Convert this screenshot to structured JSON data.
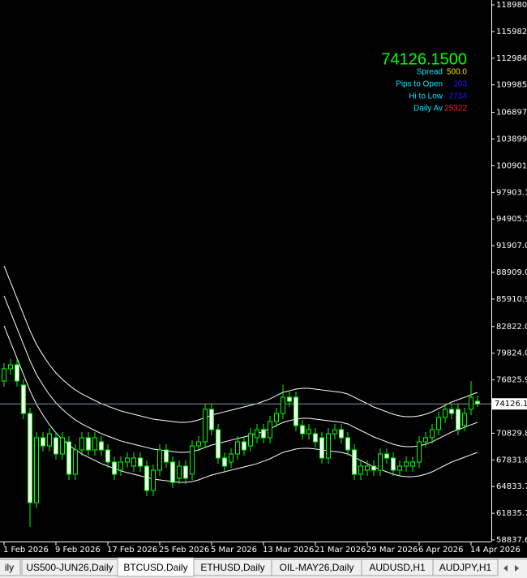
{
  "chart_data": {
    "type": "candlestick",
    "categories": [
      "1 Feb 2026",
      null,
      null,
      null,
      null,
      null,
      null,
      null,
      "9 Feb 2026",
      null,
      null,
      null,
      null,
      null,
      null,
      null,
      "17 Feb 2026",
      null,
      null,
      null,
      null,
      null,
      null,
      null,
      "25 Feb 2026",
      null,
      null,
      null,
      null,
      null,
      null,
      null,
      "5 Mar 2026",
      null,
      null,
      null,
      null,
      null,
      null,
      null,
      "13 Mar 2026",
      null,
      null,
      null,
      null,
      null,
      null,
      null,
      "21 Mar 2026",
      null,
      null,
      null,
      null,
      null,
      null,
      null,
      "29 Mar 2026",
      null,
      null,
      null,
      null,
      null,
      null,
      null,
      "6 Apr 2026",
      null,
      null,
      null,
      null,
      null,
      null,
      null,
      "14 Apr 2026",
      null
    ],
    "open": [
      76698,
      78065,
      78521,
      76243,
      73053,
      63030,
      70320,
      69408,
      70320,
      68497,
      69864,
      66219,
      68953,
      70320,
      68953,
      69864,
      68953,
      67586,
      66675,
      67586,
      67130,
      68042,
      67130,
      64396,
      66675,
      68953,
      67586,
      65763,
      67130,
      66219,
      69408,
      69864,
      73509,
      71231,
      68042,
      67586,
      68497,
      69864,
      69408,
      70320,
      71231,
      70320,
      72142,
      73053,
      74876,
      74876,
      71686,
      70775,
      70775,
      70320,
      68042,
      70775,
      71231,
      70320,
      68953,
      66219,
      66675,
      67130,
      66675,
      68497,
      68042,
      66675,
      67130,
      67130,
      67586,
      69864,
      70320,
      71231,
      72598,
      73509,
      73509,
      71686,
      73509,
      74420
    ],
    "high": [
      78700,
      79160,
      79160,
      76880,
      73690,
      70960,
      70960,
      71410,
      70960,
      70960,
      70500,
      69590,
      70960,
      70960,
      70960,
      70500,
      69590,
      68220,
      68220,
      68680,
      68680,
      68680,
      67770,
      67310,
      69590,
      69590,
      68220,
      67770,
      67770,
      70040,
      70500,
      74150,
      74150,
      71870,
      68680,
      69130,
      70500,
      70500,
      71410,
      71870,
      71870,
      72780,
      73690,
      76240,
      75510,
      75510,
      72320,
      71870,
      71410,
      70960,
      71410,
      71870,
      71870,
      70960,
      69590,
      67770,
      67770,
      67770,
      69130,
      69130,
      68680,
      67770,
      68220,
      68220,
      70500,
      70960,
      71870,
      73230,
      74150,
      74150,
      74150,
      73690,
      76700,
      75060
    ],
    "low": [
      76060,
      77430,
      76060,
      72420,
      60300,
      62390,
      68770,
      68770,
      67860,
      67860,
      65580,
      65580,
      68320,
      68320,
      68320,
      68320,
      66950,
      65580,
      66040,
      66950,
      66490,
      66490,
      63760,
      63760,
      66040,
      66950,
      64670,
      65130,
      65130,
      65580,
      68770,
      69230,
      70600,
      67400,
      66490,
      66950,
      67860,
      68320,
      68770,
      69680,
      69680,
      69680,
      71500,
      72420,
      73780,
      71050,
      70140,
      70140,
      69230,
      67400,
      67400,
      70140,
      69680,
      68320,
      65580,
      65580,
      66040,
      66040,
      66040,
      67400,
      66040,
      66040,
      66490,
      66490,
      66950,
      69230,
      69680,
      70600,
      71960,
      72420,
      70600,
      71050,
      72870,
      73780
    ],
    "close": [
      78065,
      78521,
      76698,
      73053,
      63030,
      70320,
      69408,
      70775,
      68497,
      70320,
      66219,
      68953,
      70320,
      68953,
      70320,
      68953,
      67586,
      66219,
      67586,
      68042,
      68042,
      67130,
      64396,
      66675,
      68953,
      67586,
      65308,
      67130,
      65763,
      69408,
      69864,
      73509,
      71231,
      68042,
      67130,
      68497,
      69864,
      68953,
      70775,
      71231,
      70320,
      72142,
      73053,
      74876,
      74420,
      71686,
      70775,
      71231,
      69864,
      68042,
      70775,
      71231,
      70320,
      68953,
      66219,
      67130,
      67130,
      66675,
      68497,
      68042,
      66675,
      67130,
      67586,
      67586,
      69864,
      70320,
      71231,
      72598,
      73509,
      73053,
      71231,
      73053,
      74876,
      74126.15
    ],
    "lines": [
      {
        "color": "#ffffff",
        "values": [
          89640,
          87810,
          85990,
          84170,
          82350,
          80800,
          79610,
          78520,
          77610,
          76880,
          76240,
          75690,
          75240,
          74870,
          74510,
          74150,
          73870,
          73600,
          73330,
          73140,
          72960,
          72780,
          72600,
          72410,
          72320,
          72230,
          72140,
          72050,
          72050,
          72140,
          72320,
          72600,
          72870,
          73050,
          73230,
          73420,
          73600,
          73780,
          73960,
          74150,
          74420,
          74690,
          75060,
          75420,
          75600,
          75790,
          75880,
          75880,
          75790,
          75690,
          75600,
          75510,
          75420,
          75240,
          74870,
          74510,
          74150,
          73780,
          73510,
          73230,
          72960,
          72780,
          72690,
          72690,
          72780,
          72960,
          73230,
          73600,
          73960,
          74330,
          74600,
          74870,
          75150,
          75420
        ]
      },
      {
        "color": "#ffffff",
        "values": [
          86270,
          84440,
          82620,
          80800,
          78980,
          77430,
          76240,
          75150,
          74240,
          73510,
          72870,
          72320,
          71870,
          71500,
          71140,
          70780,
          70500,
          70230,
          69960,
          69770,
          69590,
          69410,
          69230,
          69040,
          68950,
          68860,
          68770,
          68680,
          68680,
          68770,
          68950,
          69230,
          69500,
          69680,
          69860,
          70050,
          70230,
          70410,
          70590,
          70780,
          71050,
          71320,
          71690,
          72050,
          72230,
          72420,
          72510,
          72510,
          72420,
          72320,
          72230,
          72140,
          72050,
          71870,
          71500,
          71140,
          70780,
          70410,
          70140,
          69860,
          69590,
          69410,
          69320,
          69320,
          69410,
          69590,
          69860,
          70230,
          70590,
          70960,
          71230,
          71500,
          71780,
          72050
        ]
      },
      {
        "color": "#ffffff",
        "values": [
          82900,
          81070,
          79250,
          77430,
          75610,
          74060,
          72870,
          71780,
          70870,
          70140,
          69500,
          68950,
          68500,
          68130,
          67770,
          67410,
          67130,
          66860,
          66590,
          66400,
          66220,
          66040,
          65860,
          65670,
          65580,
          65490,
          65400,
          65310,
          65310,
          65400,
          65580,
          65860,
          66130,
          66310,
          66490,
          66680,
          66860,
          67040,
          67220,
          67410,
          67680,
          67950,
          68320,
          68680,
          68860,
          69050,
          69140,
          69140,
          69050,
          68950,
          68860,
          68770,
          68680,
          68500,
          68130,
          67770,
          67410,
          67040,
          66770,
          66490,
          66220,
          66040,
          65950,
          65950,
          66040,
          66220,
          66490,
          66860,
          67220,
          67590,
          67860,
          68130,
          68410,
          68680
        ]
      }
    ],
    "candle_color": "#00ff00",
    "bull_fill": "#000000",
    "bear_fill": "#ffffff",
    "background": "#000000",
    "price_line": 74126.15,
    "ylim": [
      58655,
      119527
    ],
    "yticks": [
      118980.3,
      115982.3,
      112984.2,
      109985.9,
      106897.3,
      103899.2,
      100901.2,
      97903.15,
      94905.14,
      91907.05,
      {
        "value": 88909,
        "label": "88909.00"
      },
      85910.95,
      82822.05,
      {
        "value": 79824,
        "label": "79824.00"
      },
      76825.95,
      70829.85,
      {
        "value": 67831.8,
        "label": "67831.80"
      },
      64833.75,
      {
        "value": 61835.7,
        "label": "61835.70"
      },
      58837.65
    ]
  },
  "info": {
    "price": "74126.1500",
    "spread_label": "Spread",
    "spread": "500.0",
    "pips_label": "Pips to Open",
    "pips": "203",
    "hilo_label": "Hi to Low",
    "hilo": "2734",
    "daily_label": "Daily Av",
    "daily": "25322"
  },
  "tabs": [
    "ily",
    "US500-JUN26,Daily",
    "BTCUSD,Daily",
    "ETHUSD,Daily",
    "OIL-MAY26,Daily",
    "AUDUSD,H1",
    "AUDJPY,H1"
  ]
}
